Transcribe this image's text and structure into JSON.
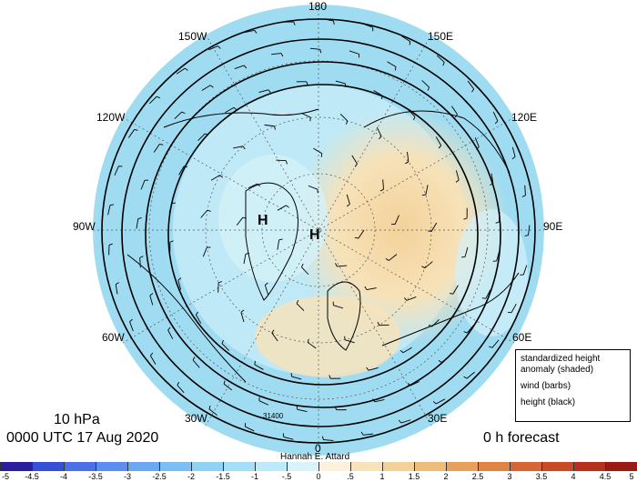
{
  "map": {
    "longitude_labels": [
      {
        "text": "180",
        "pos": "top"
      },
      {
        "text": "150E",
        "pos": "top-right"
      },
      {
        "text": "120E",
        "pos": "right-upper"
      },
      {
        "text": "90E",
        "pos": "right"
      },
      {
        "text": "60E",
        "pos": "right-lower"
      },
      {
        "text": "30E",
        "pos": "bottom-right"
      },
      {
        "text": "0",
        "pos": "bottom"
      },
      {
        "text": "30W",
        "pos": "bottom-left"
      },
      {
        "text": "60W",
        "pos": "left-lower"
      },
      {
        "text": "90W",
        "pos": "left"
      },
      {
        "text": "120W",
        "pos": "left-upper"
      },
      {
        "text": "150W",
        "pos": "top-left"
      }
    ],
    "high_markers": [
      "H",
      "H"
    ],
    "contour_label": "31400"
  },
  "info": {
    "level": "10 hPa",
    "datetime": "0000 UTC 17 Aug 2020",
    "author": "Hannah E. Attard",
    "forecast": "0 h forecast"
  },
  "legend": {
    "shaded": "standardized height anomaly (shaded)",
    "barbs": "wind (barbs)",
    "height": "height (black)"
  },
  "colorbar": {
    "labels": [
      "-5",
      "-4.5",
      "-4",
      "-3.5",
      "-3",
      "-2.5",
      "-2",
      "-1.5",
      "-1",
      "-.5",
      "0",
      ".5",
      "1",
      "1.5",
      "2",
      "2.5",
      "3",
      "3.5",
      "4",
      "4.5",
      "5"
    ],
    "colors": [
      "#2b1e9e",
      "#3550d8",
      "#4a6fe6",
      "#5b8ef0",
      "#6aa8f3",
      "#7cbff5",
      "#8ed2f5",
      "#a3e0f7",
      "#bdeaf8",
      "#d9f3fa",
      "#fbf1dc",
      "#f7e2b9",
      "#f3d29a",
      "#eebd7a",
      "#e8a05d",
      "#e08446",
      "#d66734",
      "#c94b26",
      "#b7321c",
      "#9c1a14"
    ]
  },
  "colors": {
    "cool_fill": "#a3e0f7",
    "warm_fill": "#f7e2b9",
    "contour": "#000000"
  }
}
